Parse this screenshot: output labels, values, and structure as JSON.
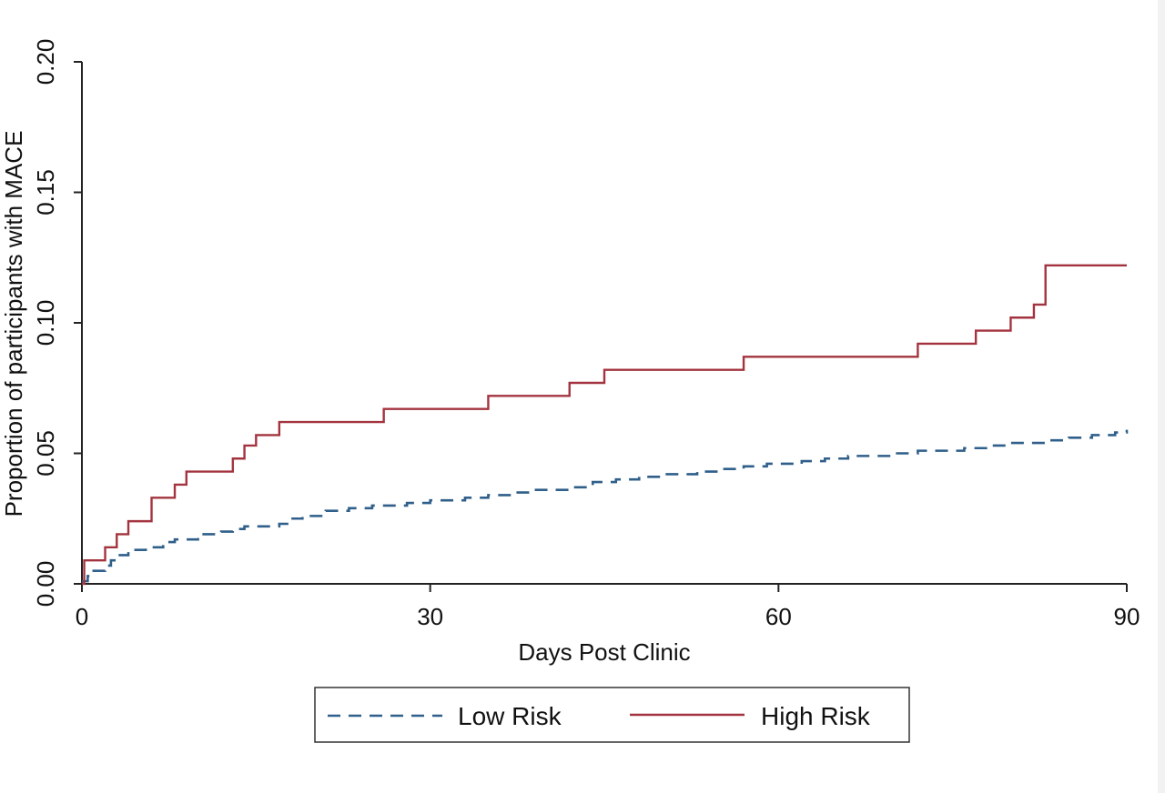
{
  "chart_data": {
    "type": "line",
    "title": "",
    "xlabel": "Days Post Clinic",
    "ylabel": "Proportion of participants with MACE",
    "xlim": [
      0,
      90
    ],
    "ylim": [
      0,
      0.2
    ],
    "xticks": [
      0,
      30,
      60,
      90
    ],
    "xtick_labels": [
      "0",
      "30",
      "60",
      "90"
    ],
    "yticks": [
      0,
      0.05,
      0.1,
      0.15,
      0.2
    ],
    "ytick_labels": [
      "0.00",
      "0.05",
      "0.10",
      "0.15",
      "0.20"
    ],
    "grid": false,
    "legend_position": "bottom",
    "step": true,
    "series": [
      {
        "name": "Low Risk",
        "style": "dashed",
        "color": "#2f5f8a",
        "x": [
          0,
          0.5,
          1,
          2,
          2.5,
          3,
          4,
          5.5,
          7,
          8,
          10,
          12,
          13,
          14,
          15,
          17,
          18,
          19,
          21,
          23,
          25,
          28,
          30,
          33,
          35,
          37,
          39,
          42,
          44,
          46,
          48,
          50,
          53,
          55,
          57,
          59,
          62,
          64,
          66,
          70,
          72,
          76,
          78,
          80,
          83,
          85,
          87,
          89,
          90
        ],
        "values": [
          0.001,
          0.003,
          0.005,
          0.007,
          0.009,
          0.011,
          0.013,
          0.014,
          0.016,
          0.017,
          0.019,
          0.02,
          0.021,
          0.022,
          0.022,
          0.023,
          0.025,
          0.026,
          0.028,
          0.029,
          0.03,
          0.031,
          0.032,
          0.033,
          0.034,
          0.035,
          0.036,
          0.037,
          0.039,
          0.04,
          0.041,
          0.042,
          0.043,
          0.044,
          0.045,
          0.046,
          0.047,
          0.048,
          0.049,
          0.05,
          0.051,
          0.052,
          0.053,
          0.054,
          0.055,
          0.056,
          0.057,
          0.058,
          0.059
        ]
      },
      {
        "name": "High Risk",
        "style": "solid",
        "color": "#a3343f",
        "x": [
          0,
          0.2,
          2,
          3,
          4,
          6,
          8,
          9,
          13,
          14,
          15,
          17,
          26,
          35,
          42,
          45,
          57,
          72,
          77,
          80,
          82,
          83,
          90
        ],
        "values": [
          0,
          0.009,
          0.014,
          0.019,
          0.024,
          0.033,
          0.038,
          0.043,
          0.048,
          0.053,
          0.057,
          0.062,
          0.067,
          0.072,
          0.077,
          0.082,
          0.087,
          0.092,
          0.097,
          0.102,
          0.107,
          0.122,
          0.122
        ]
      }
    ]
  }
}
